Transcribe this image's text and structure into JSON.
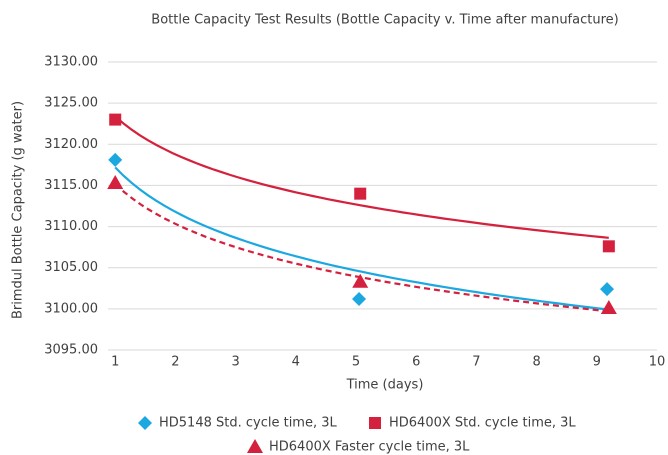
{
  "chart_data": {
    "type": "scatter",
    "title": "Bottle Capacity Test Results (Bottle Capacity v. Time after manufacture)",
    "x_label": "Time (days)",
    "y_label": "Brimdul Bottle Capacity (g water)",
    "xlim": [
      0.88,
      10
    ],
    "xticks": [
      1,
      2,
      3,
      4,
      5,
      6,
      7,
      8,
      9,
      10
    ],
    "ylim": [
      3095,
      3130
    ],
    "yticks": [
      {
        "value": 3095,
        "label": "3095.00"
      },
      {
        "value": 3100,
        "label": "3100.00"
      },
      {
        "value": 3105,
        "label": "3105.00"
      },
      {
        "value": 3110,
        "label": "3110.00"
      },
      {
        "value": 3115,
        "label": "3115.00"
      },
      {
        "value": 3120,
        "label": "3120.00"
      },
      {
        "value": 3125,
        "label": "3125.00"
      },
      {
        "value": 3130,
        "label": "3130.00"
      }
    ],
    "grid": true,
    "trendline": "log",
    "legend": "bottom",
    "series": [
      {
        "name": "HD5148 Std. cycle time, 3L",
        "color": "#1ba8e0",
        "marker": "diamond",
        "line_style": "solid",
        "x": [
          1,
          5.05,
          9.17
        ],
        "values": [
          3118.1,
          3101.2,
          3102.4
        ]
      },
      {
        "name": "HD6400X Std. cycle time, 3L",
        "color": "#d4213d",
        "marker": "square",
        "line_style": "solid",
        "x": [
          1,
          5.07,
          9.2
        ],
        "values": [
          3123.0,
          3114.0,
          3107.6
        ]
      },
      {
        "name": "HD6400X Faster cycle time, 3L",
        "color": "#d4213d",
        "marker": "triangle",
        "line_style": "dashed",
        "x": [
          1,
          5.07,
          9.2
        ],
        "values": [
          3115.3,
          3103.3,
          3100.1
        ]
      }
    ]
  }
}
